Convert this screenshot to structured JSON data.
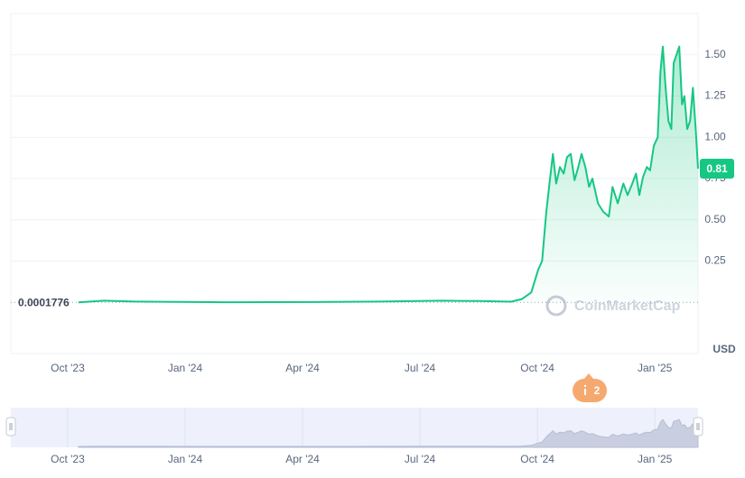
{
  "chart_data": {
    "type": "line",
    "x": [
      2023.773,
      2023.827,
      2023.894,
      2024.087,
      2024.279,
      2024.413,
      2024.548,
      2024.625,
      2024.694,
      2024.717,
      2024.737,
      2024.752,
      2024.76,
      2024.769,
      2024.777,
      2024.783,
      2024.79,
      2024.798,
      2024.806,
      2024.813,
      2024.821,
      2024.829,
      2024.837,
      2024.844,
      2024.852,
      2024.86,
      2024.867,
      2024.879,
      2024.89,
      2024.902,
      2024.91,
      2024.921,
      2024.933,
      2024.942,
      2024.952,
      2024.96,
      2024.967,
      2024.975,
      2024.983,
      2024.99,
      2024.998,
      2025.006,
      2025.012,
      2025.017,
      2025.023,
      2025.029,
      2025.035,
      2025.04,
      2025.046,
      2025.052,
      2025.058,
      2025.063,
      2025.069,
      2025.075,
      2025.081,
      2025.087,
      2025.092
    ],
    "series": [
      {
        "color": "#16c784",
        "values": [
          0.0002,
          0.01,
          0.005,
          0.001,
          0.002,
          0.005,
          0.01,
          0.008,
          0.004,
          0.02,
          0.06,
          0.2,
          0.25,
          0.55,
          0.75,
          0.9,
          0.72,
          0.82,
          0.78,
          0.88,
          0.9,
          0.74,
          0.82,
          0.9,
          0.82,
          0.7,
          0.75,
          0.6,
          0.55,
          0.52,
          0.7,
          0.6,
          0.72,
          0.65,
          0.72,
          0.78,
          0.65,
          0.76,
          0.82,
          0.8,
          0.95,
          1.0,
          1.4,
          1.55,
          1.3,
          1.1,
          1.05,
          1.45,
          1.5,
          1.55,
          1.2,
          1.25,
          1.05,
          1.1,
          1.3,
          1.05,
          0.81
        ]
      }
    ],
    "xlim": [
      2023.629,
      2025.092
    ],
    "xticks": [
      {
        "value": 2023.75,
        "label": "Oct '23"
      },
      {
        "value": 2024.0,
        "label": "Jan '24"
      },
      {
        "value": 2024.25,
        "label": "Apr '24"
      },
      {
        "value": 2024.5,
        "label": "Jul '24"
      },
      {
        "value": 2024.75,
        "label": "Oct '24"
      },
      {
        "value": 2025.0,
        "label": "Jan '25"
      }
    ],
    "ylim": [
      -0.31,
      1.75
    ],
    "yticks": [
      0.25,
      {
        "value": 0.5,
        "label": "0.50"
      },
      0.75,
      {
        "value": 1.0,
        "label": "1.00"
      },
      1.25,
      {
        "value": 1.5,
        "label": "1.50"
      }
    ],
    "grid": true,
    "y_unit": "USD",
    "current_price": 0.81,
    "start_price": 0.0001776,
    "watermark": "CoinMarketCap",
    "event_count": 2
  }
}
